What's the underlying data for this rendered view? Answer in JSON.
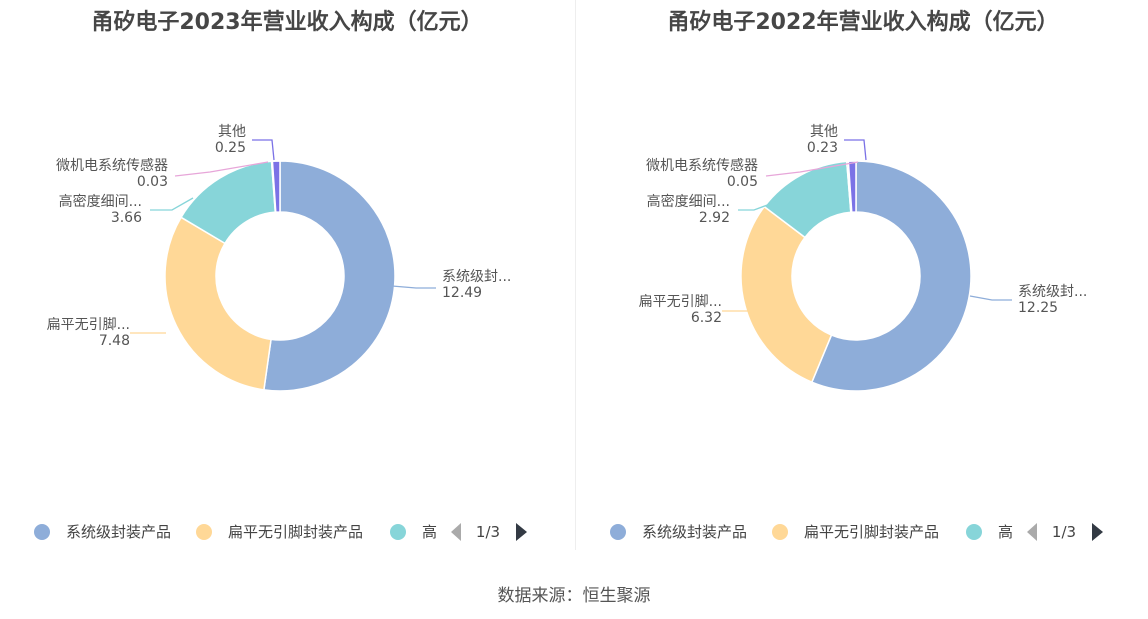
{
  "source": "数据来源：恒生聚源",
  "legend_page": "1/3",
  "colors": {
    "系统级封装产品": "#8eadd9",
    "扁平无引脚封装产品": "#ffd897",
    "高密度细间距": "#87d5d9",
    "微机电系统传感器": "#e7a6d9",
    "其他": "#7b72e6"
  },
  "chart_data": [
    {
      "type": "pie",
      "title": "甬矽电子2023年营业收入构成（亿元）",
      "slices": [
        {
          "name": "系统级封装产品",
          "label": "系统级封...",
          "value": 12.49
        },
        {
          "name": "扁平无引脚封装产品",
          "label": "扁平无引脚...",
          "value": 7.48
        },
        {
          "name": "高密度细间距",
          "label": "高密度细间...",
          "value": 3.66
        },
        {
          "name": "微机电系统传感器",
          "label": "微机电系统传感器",
          "value": 0.03
        },
        {
          "name": "其他",
          "label": "其他",
          "value": 0.25
        }
      ],
      "legend": [
        "系统级封装产品",
        "扁平无引脚封装产品",
        "高"
      ]
    },
    {
      "type": "pie",
      "title": "甬矽电子2022年营业收入构成（亿元）",
      "slices": [
        {
          "name": "系统级封装产品",
          "label": "系统级封...",
          "value": 12.25
        },
        {
          "name": "扁平无引脚封装产品",
          "label": "扁平无引脚...",
          "value": 6.32
        },
        {
          "name": "高密度细间距",
          "label": "高密度细间...",
          "value": 2.92
        },
        {
          "name": "微机电系统传感器",
          "label": "微机电系统传感器",
          "value": 0.05
        },
        {
          "name": "其他",
          "label": "其他",
          "value": 0.23
        }
      ],
      "legend": [
        "系统级封装产品",
        "扁平无引脚封装产品",
        "高"
      ]
    }
  ]
}
